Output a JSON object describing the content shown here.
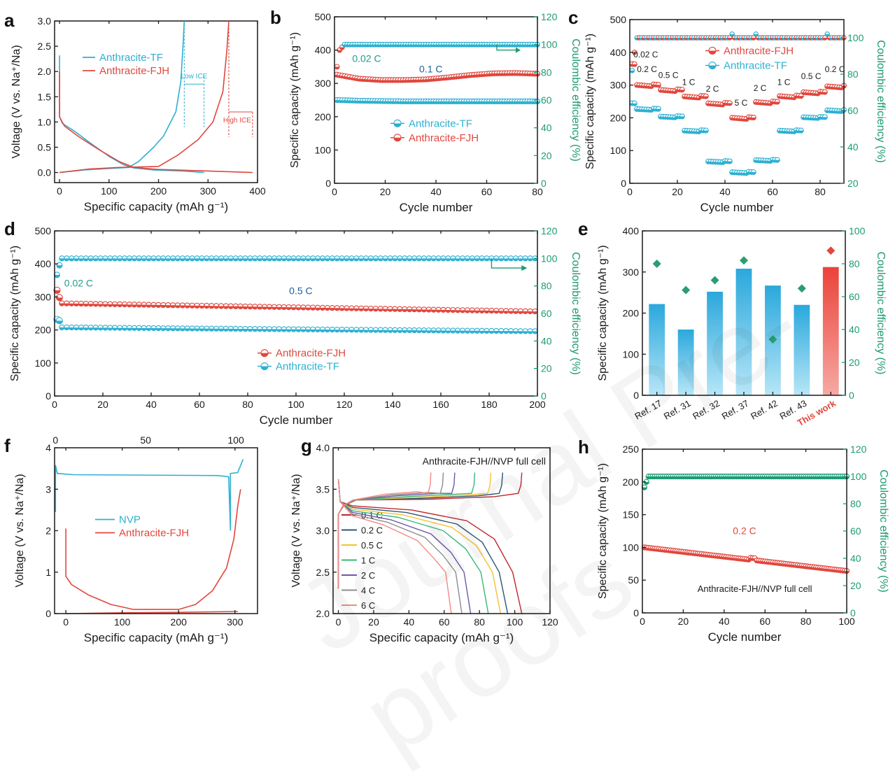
{
  "colors": {
    "red": "#e0473d",
    "blue": "#2db0d2",
    "green": "#1d9b74",
    "teal": "#1f9b8c",
    "axis": "#1a1a1a",
    "redLight": "#f39891",
    "blueLight": "#8fd6ee"
  },
  "watermark": "Journal Pre-proofs",
  "chart_data": [
    {
      "panel": "a",
      "type": "line",
      "xlabel": "Specific capacity (mAh g⁻¹)",
      "ylabel": "Voltage (V vs. Na⁺/Na)",
      "xlim": [
        -10,
        400
      ],
      "ylim": [
        -0.2,
        3.0
      ],
      "xticks": [
        0,
        100,
        200,
        300,
        400
      ],
      "yticks": [
        0,
        0.5,
        1.0,
        1.5,
        2.0,
        2.5,
        3.0
      ],
      "series": [
        {
          "name": "Anthracite-TF",
          "color": "blue",
          "points": [
            [
              0,
              2.32
            ],
            [
              0,
              1.1
            ],
            [
              6,
              0.97
            ],
            [
              30,
              0.82
            ],
            [
              60,
              0.6
            ],
            [
              100,
              0.32
            ],
            [
              130,
              0.15
            ],
            [
              150,
              0.09
            ],
            [
              190,
              0.05
            ],
            [
              250,
              0.03
            ],
            [
              292,
              0.0
            ]
          ]
        },
        {
          "name": "Anthracite-TF charge",
          "color": "blue",
          "points": [
            [
              0,
              0.0
            ],
            [
              50,
              0.05
            ],
            [
              100,
              0.08
            ],
            [
              140,
              0.1
            ],
            [
              160,
              0.22
            ],
            [
              190,
              0.5
            ],
            [
              210,
              0.72
            ],
            [
              235,
              1.2
            ],
            [
              245,
              1.8
            ],
            [
              250,
              2.6
            ],
            [
              252,
              3.0
            ]
          ]
        },
        {
          "name": "Anthracite-FJH",
          "color": "red",
          "points": [
            [
              0,
              2.0
            ],
            [
              0,
              1.1
            ],
            [
              10,
              0.92
            ],
            [
              40,
              0.7
            ],
            [
              80,
              0.45
            ],
            [
              120,
              0.22
            ],
            [
              150,
              0.1
            ],
            [
              200,
              0.06
            ],
            [
              300,
              0.03
            ],
            [
              390,
              0.0
            ]
          ]
        },
        {
          "name": "Anthracite-FJH charge",
          "color": "red",
          "points": [
            [
              0,
              0.0
            ],
            [
              60,
              0.07
            ],
            [
              120,
              0.1
            ],
            [
              200,
              0.12
            ],
            [
              240,
              0.35
            ],
            [
              280,
              0.65
            ],
            [
              310,
              1.0
            ],
            [
              330,
              1.6
            ],
            [
              338,
              2.4
            ],
            [
              342,
              3.0
            ]
          ]
        }
      ],
      "legend": [
        "Anthracite-TF",
        "Anthracite-FJH"
      ],
      "annotations": [
        "Low ICE",
        "High ICE"
      ]
    },
    {
      "panel": "b",
      "type": "scatter",
      "xlabel": "Cycle number",
      "ylabel": "Specific capacity (mAh g⁻¹)",
      "y2label": "Coulombic efficiency (%)",
      "xlim": [
        0,
        80
      ],
      "ylim": [
        0,
        500
      ],
      "y2lim": [
        0,
        120
      ],
      "xticks": [
        0,
        20,
        40,
        60,
        80
      ],
      "yticks": [
        0,
        100,
        200,
        300,
        400,
        500
      ],
      "y2ticks": [
        0,
        20,
        40,
        60,
        80,
        100,
        120
      ],
      "series": [
        {
          "name": "Anthracite-TF",
          "color": "blue",
          "values": [
            250,
            248,
            247,
            246,
            246,
            246,
            246,
            246,
            246,
            246
          ]
        },
        {
          "name": "Anthracite-FJH",
          "color": "red",
          "values": [
            326,
            314,
            310,
            310,
            312,
            318,
            325,
            330,
            331,
            329
          ]
        },
        {
          "name": "CE",
          "color": "blue",
          "axis": "y2",
          "values": [
            84,
            96,
            99,
            99.5,
            100,
            100,
            100,
            100,
            100,
            100
          ]
        }
      ],
      "legend": [
        "Anthracite-TF",
        "Anthracite-FJH"
      ],
      "annotations": [
        "0.02 C",
        "0.1 C"
      ]
    },
    {
      "panel": "c",
      "type": "scatter",
      "xlabel": "Cycle number",
      "ylabel": "Specific capacity (mAh g⁻¹)",
      "y2label": "Coulombic efficiency (%)",
      "xlim": [
        0,
        90
      ],
      "ylim": [
        0,
        500
      ],
      "y2lim": [
        20,
        110
      ],
      "xticks": [
        0,
        20,
        40,
        60,
        80
      ],
      "yticks": [
        0,
        100,
        200,
        300,
        400,
        500
      ],
      "y2ticks": [
        20,
        40,
        60,
        80,
        100
      ],
      "rates": [
        "0.02 C",
        "0.2 C",
        "0.5 C",
        "1 C",
        "2 C",
        "5 C",
        "2 C",
        "1 C",
        "0.5 C",
        "0.2 C"
      ],
      "series": [
        {
          "name": "Anthracite-FJH",
          "color": "red",
          "values": [
            365,
            302,
            287,
            267,
            246,
            202,
            250,
            268,
            280,
            298
          ]
        },
        {
          "name": "Anthracite-TF",
          "color": "blue",
          "values": [
            245,
            228,
            205,
            162,
            68,
            35,
            72,
            162,
            203,
            224
          ]
        }
      ],
      "legend": [
        "Anthracite-FJH",
        "Anthracite-TF"
      ]
    },
    {
      "panel": "d",
      "type": "scatter",
      "xlabel": "Cycle number",
      "ylabel": "Specific capacity (mAh g⁻¹)",
      "y2label": "Coulombic efficiency (%)",
      "xlim": [
        0,
        200
      ],
      "ylim": [
        0,
        500
      ],
      "y2lim": [
        0,
        120
      ],
      "xticks": [
        0,
        20,
        40,
        60,
        80,
        100,
        120,
        140,
        160,
        180,
        200
      ],
      "yticks": [
        0,
        100,
        200,
        300,
        400,
        500
      ],
      "y2ticks": [
        0,
        20,
        40,
        60,
        80,
        100,
        120
      ],
      "series": [
        {
          "name": "Anthracite-FJH",
          "color": "red",
          "start": [
            320,
            298
          ],
          "range": [
            281,
            256
          ]
        },
        {
          "name": "Anthracite-TF",
          "color": "blue",
          "start": [
            232,
            228
          ],
          "range": [
            208,
            196
          ]
        },
        {
          "name": "CE",
          "color": "blue",
          "axis": "y2",
          "value": 100
        }
      ],
      "legend": [
        "Anthracite-FJH",
        "Anthracite-TF"
      ],
      "annotations": [
        "0.02 C",
        "0.5 C"
      ]
    },
    {
      "panel": "e",
      "type": "bar",
      "ylabel": "Specific capacity (mAh g⁻¹)",
      "y2label": "Coulombic efficiency (%)",
      "categories": [
        "Ref. 17",
        "Ref. 31",
        "Ref. 32",
        "Ref. 37",
        "Ref. 42",
        "Ref. 43",
        "This work"
      ],
      "values": [
        222,
        160,
        252,
        308,
        267,
        220,
        312
      ],
      "ce": [
        80,
        64,
        70,
        82,
        34,
        65,
        88
      ],
      "ylim": [
        0,
        400
      ],
      "y2lim": [
        0,
        100
      ],
      "yticks": [
        0,
        100,
        200,
        300,
        400
      ],
      "y2ticks": [
        0,
        20,
        40,
        60,
        80,
        100
      ]
    },
    {
      "panel": "f",
      "type": "line",
      "xlabel": "Specific capacity (mAh g⁻¹)",
      "ylabel": "Voltage (V vs. Na⁺/Na)",
      "xlim": [
        -20,
        340
      ],
      "ylim": [
        0,
        4
      ],
      "x2lim": [
        -0.5,
        112
      ],
      "xticks": [
        0,
        100,
        200,
        300
      ],
      "x2ticks": [
        0,
        50,
        100
      ],
      "yticks": [
        0,
        1,
        2,
        3,
        4
      ],
      "series": [
        {
          "name": "NVP",
          "color": "blue",
          "axis": "x2",
          "points": [
            [
              0,
              2.45
            ],
            [
              0,
              3.58
            ],
            [
              1,
              3.38
            ],
            [
              10,
              3.35
            ],
            [
              90,
              3.33
            ],
            [
              96,
              3.3
            ],
            [
              97,
              2.0
            ],
            [
              97,
              3.38
            ],
            [
              101,
              3.4
            ],
            [
              104,
              3.72
            ]
          ]
        },
        {
          "name": "Anthracite-FJH",
          "color": "red",
          "points": [
            [
              0,
              2.05
            ],
            [
              0,
              0.9
            ],
            [
              10,
              0.7
            ],
            [
              40,
              0.45
            ],
            [
              80,
              0.22
            ],
            [
              120,
              0.1
            ],
            [
              200,
              0.1
            ],
            [
              230,
              0.22
            ],
            [
              260,
              0.55
            ],
            [
              285,
              1.1
            ],
            [
              298,
              1.8
            ],
            [
              305,
              2.6
            ],
            [
              310,
              3.0
            ]
          ]
        },
        {
          "name": "Anthracite-FJH discharge",
          "color": "red",
          "points": [
            [
              0,
              0.0
            ],
            [
              100,
              0.02
            ],
            [
              200,
              0.03
            ],
            [
              305,
              0.05
            ]
          ]
        }
      ],
      "legend": [
        "NVP",
        "Anthracite-FJH"
      ]
    },
    {
      "panel": "g",
      "type": "line",
      "title": "Anthracite-FJH//NVP full cell",
      "xlabel": "Specific capacity (mAh g⁻¹)",
      "ylabel": "Voltage (V vs. Na⁺/Na)",
      "xlim": [
        -3,
        120
      ],
      "ylim": [
        2.0,
        4.0
      ],
      "xticks": [
        0,
        20,
        40,
        60,
        80,
        100,
        120
      ],
      "yticks": [
        2.0,
        2.5,
        3.0,
        3.5,
        4.0
      ],
      "series": [
        {
          "name": "0.1 C",
          "color": "#c0262d",
          "endCapacity": 104
        },
        {
          "name": "0.2 C",
          "color": "#2f5575",
          "endCapacity": 96
        },
        {
          "name": "0.5 C",
          "color": "#f2c233",
          "endCapacity": 92
        },
        {
          "name": "1 C",
          "color": "#3bb67a",
          "endCapacity": 85
        },
        {
          "name": "2 C",
          "color": "#6a5aa8",
          "endCapacity": 75
        },
        {
          "name": "4 C",
          "color": "#8c8c8c",
          "endCapacity": 70
        },
        {
          "name": "6 C",
          "color": "#f28a86",
          "endCapacity": 64
        }
      ]
    },
    {
      "panel": "h",
      "type": "scatter",
      "xlabel": "Cycle number",
      "ylabel": "Specific capacity (mAh g⁻¹)",
      "y2label": "Coulombic efficiency (%)",
      "xlim": [
        0,
        100
      ],
      "ylim": [
        0,
        250
      ],
      "y2lim": [
        0,
        120
      ],
      "xticks": [
        0,
        20,
        40,
        60,
        80,
        100
      ],
      "yticks": [
        0,
        50,
        100,
        150,
        200,
        250
      ],
      "y2ticks": [
        0,
        20,
        40,
        60,
        80,
        100,
        120
      ],
      "series": [
        {
          "name": "Capacity",
          "color": "red",
          "values": [
            100,
            64
          ]
        },
        {
          "name": "CE",
          "color": "green",
          "axis": "y2",
          "values": [
            92,
            100
          ]
        }
      ],
      "annotations": [
        "0.2 C",
        "Anthracite-FJH//NVP full cell"
      ]
    }
  ]
}
